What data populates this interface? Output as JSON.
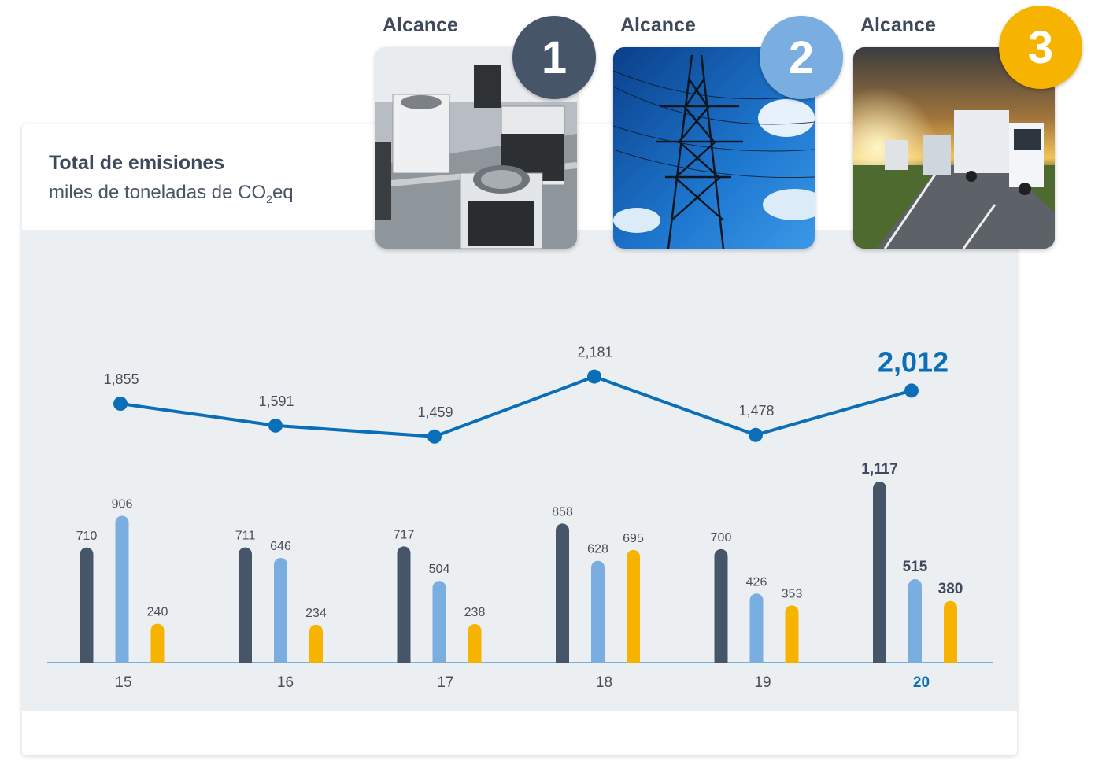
{
  "header": {
    "title": "Total de emisiones",
    "subtitle_pre": "miles de toneladas de CO",
    "subtitle_sub": "2",
    "subtitle_post": "eq"
  },
  "scopes": [
    {
      "label": "Alcance",
      "number": "1",
      "color": "#475569",
      "image": "air-conditioning-units-photo"
    },
    {
      "label": "Alcance",
      "number": "2",
      "color": "#7aaee0",
      "image": "power-transmission-tower-photo"
    },
    {
      "label": "Alcance",
      "number": "3",
      "color": "#f6b400",
      "image": "trucks-on-highway-photo"
    }
  ],
  "chart_data": {
    "type": "bar",
    "categories": [
      "15",
      "16",
      "17",
      "18",
      "19",
      "20"
    ],
    "highlight_category": "20",
    "series": [
      {
        "name": "Alcance 1",
        "color": "#475569",
        "values": [
          710,
          711,
          717,
          858,
          700,
          1117
        ],
        "labels": [
          "710",
          "711",
          "717",
          "858",
          "700",
          "1,117"
        ]
      },
      {
        "name": "Alcance 2",
        "color": "#7aaee0",
        "values": [
          906,
          646,
          504,
          628,
          426,
          515
        ],
        "labels": [
          "906",
          "646",
          "504",
          "628",
          "426",
          "515"
        ]
      },
      {
        "name": "Alcance 3",
        "color": "#f6b400",
        "values": [
          240,
          234,
          238,
          695,
          353,
          380
        ],
        "labels": [
          "240",
          "234",
          "238",
          "695",
          "353",
          "380"
        ]
      }
    ],
    "total_line": {
      "color": "#0b6fb8",
      "values": [
        1855,
        1591,
        1459,
        2181,
        1478,
        2012
      ],
      "labels": [
        "1,855",
        "1,591",
        "1,459",
        "2,181",
        "1,478",
        "2,012"
      ]
    },
    "title": "Total de emisiones",
    "ylabel": "miles de toneladas de CO2eq",
    "grid": false,
    "legend": "none"
  }
}
